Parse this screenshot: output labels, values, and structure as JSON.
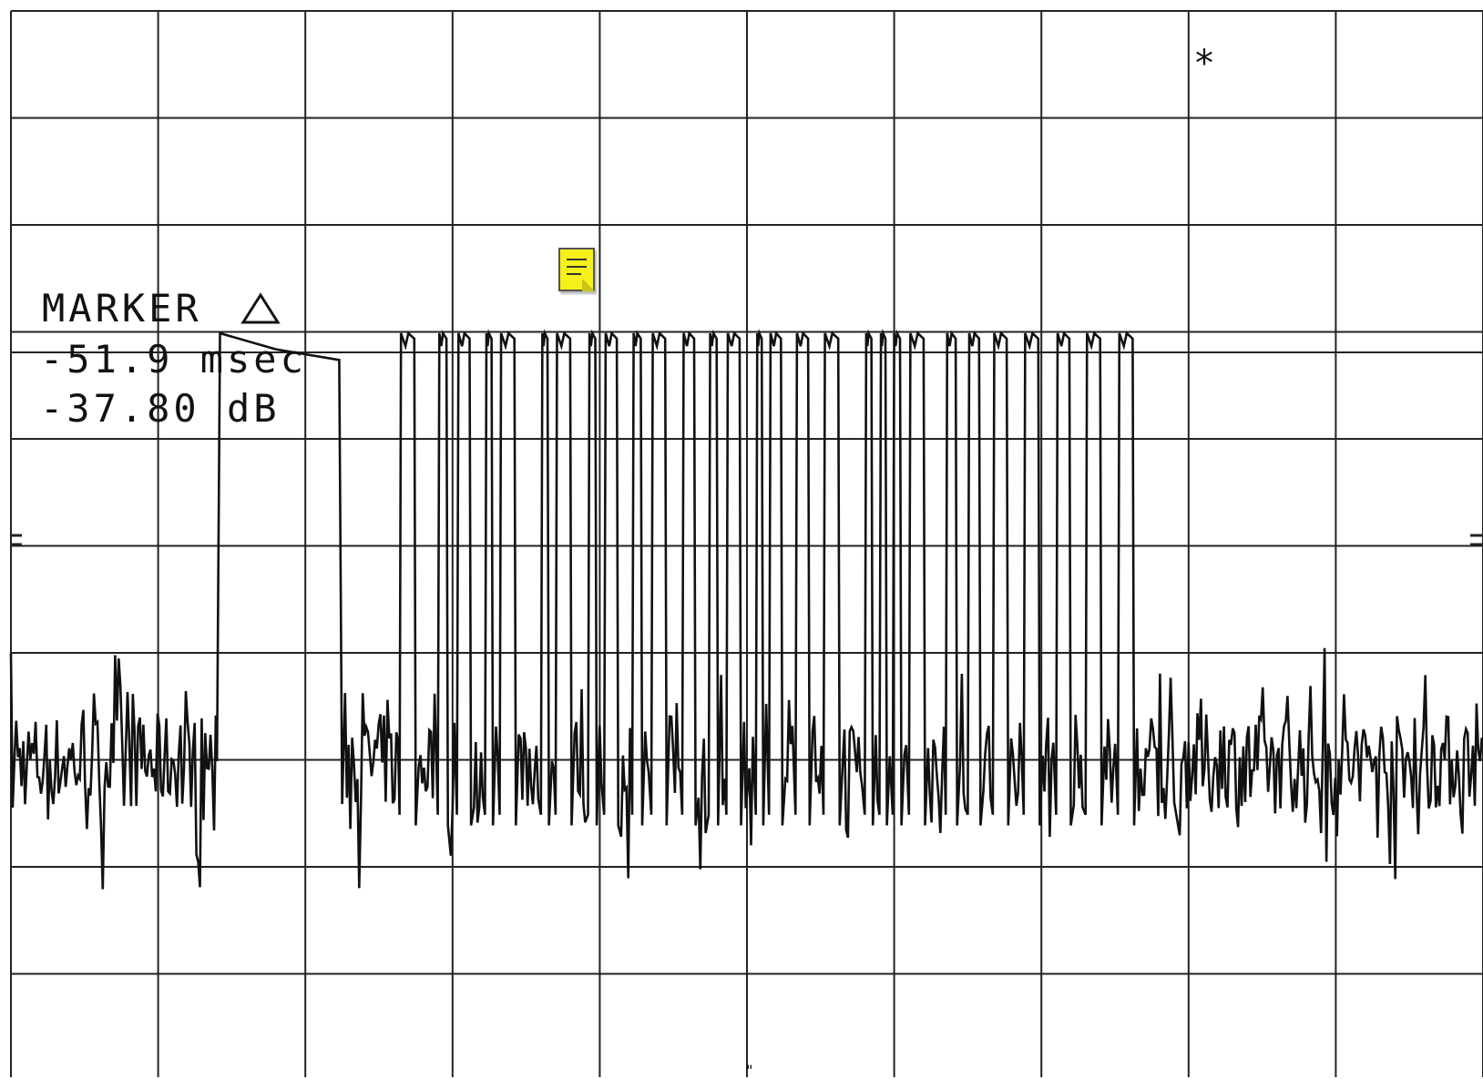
{
  "marker": {
    "title": "MARKER",
    "time_delta": "-51.9 msec",
    "level_delta": "-37.80 dB"
  },
  "annotations": {
    "star": "*",
    "note_icon": "note-icon"
  },
  "colors": {
    "trace": "#111111",
    "grid": "#222222",
    "background": "#ffffff",
    "note": "#f6f01a"
  },
  "chart_data": {
    "type": "line",
    "title": "",
    "xlabel": "",
    "ylabel": "",
    "grid": true,
    "x_divisions": 10,
    "y_divisions": 10,
    "x_range": [
      0,
      10
    ],
    "y_range": [
      0,
      10
    ],
    "baseline_level": 2.0,
    "pulse_top_level": 6.0,
    "burst_segments": [
      {
        "x_start": 1.4,
        "x_end": 2.25,
        "level": 5.85,
        "shape": "single-pulse"
      },
      {
        "x_start": 2.64,
        "x_end": 7.92,
        "level": 6.0,
        "shape": "pulse-train"
      }
    ],
    "pulse_train_starts": [
      2.64,
      2.9,
      3.03,
      3.22,
      3.32,
      3.6,
      3.7,
      3.92,
      4.03,
      4.22,
      4.35,
      4.56,
      4.74,
      4.86,
      5.06,
      5.15,
      5.33,
      5.52,
      5.8,
      5.9,
      5.99,
      6.1,
      6.35,
      6.5,
      6.67,
      6.88,
      7.1,
      7.3,
      7.52
    ],
    "marker_delta": {
      "time": "-51.9 msec",
      "level": "-37.80 dB"
    }
  }
}
